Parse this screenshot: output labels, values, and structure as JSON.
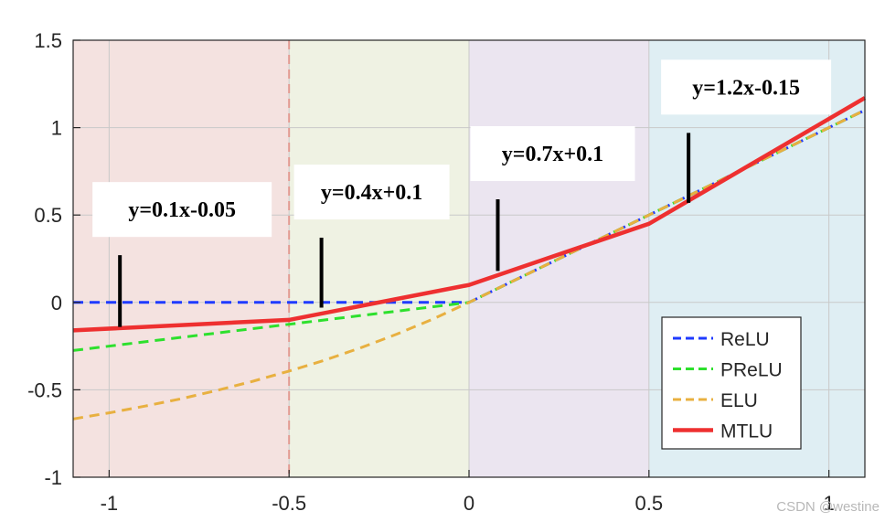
{
  "chart_data": {
    "type": "line",
    "title": "",
    "xlabel": "",
    "ylabel": "",
    "xlim": [
      -1.1,
      1.1
    ],
    "ylim": [
      -1,
      1.5
    ],
    "grid": true,
    "x_ticks": [
      -1,
      -0.5,
      0,
      0.5,
      1
    ],
    "x_tick_labels": [
      "-1",
      "-0.5",
      "0",
      "0.5",
      "1"
    ],
    "y_ticks": [
      -1,
      -0.5,
      0,
      0.5,
      1,
      1.5
    ],
    "y_tick_labels": [
      "-1",
      "-0.5",
      "0",
      "0.5",
      "1",
      "1.5"
    ],
    "regions": [
      {
        "x_start": -1.1,
        "x_end": -0.5,
        "color": "#f4e2e0"
      },
      {
        "x_start": -0.5,
        "x_end": 0,
        "color": "#eff2e3"
      },
      {
        "x_start": 0,
        "x_end": 0.5,
        "color": "#ebe5f0"
      },
      {
        "x_start": 0.5,
        "x_end": 1.1,
        "color": "#dfeef3"
      }
    ],
    "boundary_line": {
      "x": -0.5,
      "color": "#e29a92"
    },
    "series": [
      {
        "name": "ReLU",
        "style": "dashed",
        "color": "#1f3bff",
        "x": [
          -1.1,
          0,
          1.1
        ],
        "y": [
          0,
          0,
          1.1
        ]
      },
      {
        "name": "PReLU",
        "style": "dashed",
        "color": "#2de02d",
        "x": [
          -1.1,
          0,
          1.1
        ],
        "y": [
          -0.275,
          0,
          1.1
        ]
      },
      {
        "name": "ELU",
        "style": "dashed",
        "color": "#e8b040",
        "x": [
          -1.1,
          -1.0,
          -0.9,
          -0.8,
          -0.7,
          -0.6,
          -0.5,
          -0.4,
          -0.3,
          -0.2,
          -0.1,
          0,
          1.1
        ],
        "y": [
          -0.667,
          -0.632,
          -0.593,
          -0.551,
          -0.503,
          -0.451,
          -0.393,
          -0.33,
          -0.259,
          -0.181,
          -0.095,
          0,
          1.1
        ]
      },
      {
        "name": "MTLU",
        "style": "solid",
        "color": "#ee3030",
        "x": [
          -1.1,
          -0.5,
          0,
          0.5,
          1.1
        ],
        "y": [
          -0.16,
          -0.1,
          0.1,
          0.45,
          1.17
        ]
      }
    ],
    "legend": {
      "position": "bottom-right",
      "entries": [
        "ReLU",
        "PReLU",
        "ELU",
        "MTLU"
      ]
    },
    "annotations": [
      {
        "text": "y=0.1x-0.05",
        "pointer_x": -0.97,
        "pointer_y_from": -0.14,
        "pointer_y_to": 0.27
      },
      {
        "text": "y=0.4x+0.1",
        "pointer_x": -0.41,
        "pointer_y_from": -0.03,
        "pointer_y_to": 0.37
      },
      {
        "text": "y=0.7x+0.1",
        "pointer_x": 0.08,
        "pointer_y_from": 0.18,
        "pointer_y_to": 0.59
      },
      {
        "text": "y=1.2x-0.15",
        "pointer_x": 0.61,
        "pointer_y_from": 0.57,
        "pointer_y_to": 0.97
      }
    ]
  },
  "watermark": "CSDN @westine"
}
